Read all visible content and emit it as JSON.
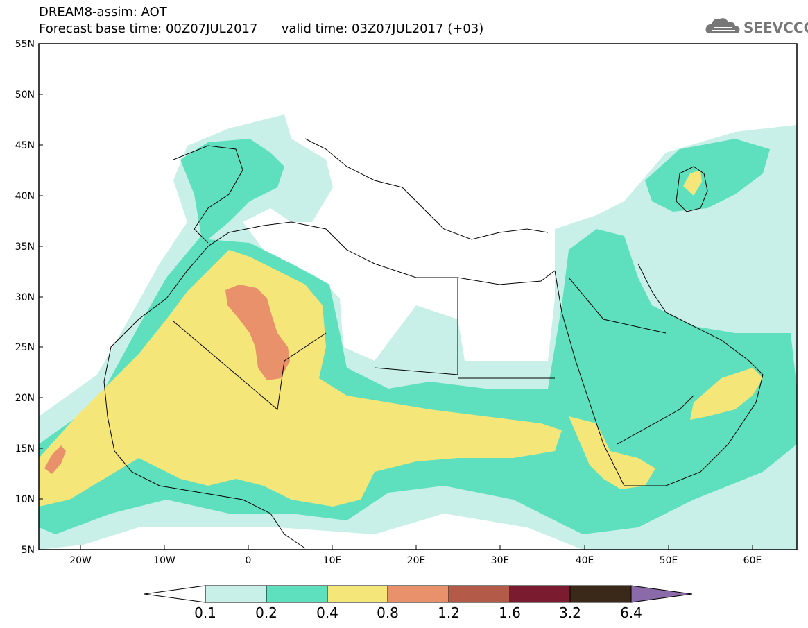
{
  "header": {
    "title_line1": "DREAM8-assim: AOT",
    "title_line2": "Forecast base time: 00Z07JUL2017      valid time: 03Z07JUL2017 (+03)",
    "logo_text": "SEEVCCC"
  },
  "icons": {
    "logo": "cloud-icon"
  },
  "map": {
    "lat_labels": [
      "55N",
      "50N",
      "45N",
      "40N",
      "35N",
      "30N",
      "25N",
      "20N",
      "15N",
      "10N",
      "5N"
    ],
    "lon_labels": [
      "20W",
      "10W",
      "0",
      "10E",
      "20E",
      "30E",
      "40E",
      "50E",
      "60E"
    ]
  },
  "colorbar": {
    "labels": [
      "0.1",
      "0.2",
      "0.4",
      "0.8",
      "1.2",
      "1.6",
      "3.2",
      "6.4"
    ],
    "colors": [
      "#ffffff",
      "#c8f0e8",
      "#5ee0be",
      "#f5e67a",
      "#e8916a",
      "#b45a48",
      "#7a1b30",
      "#3a2818",
      "#8a6aa8"
    ]
  }
}
